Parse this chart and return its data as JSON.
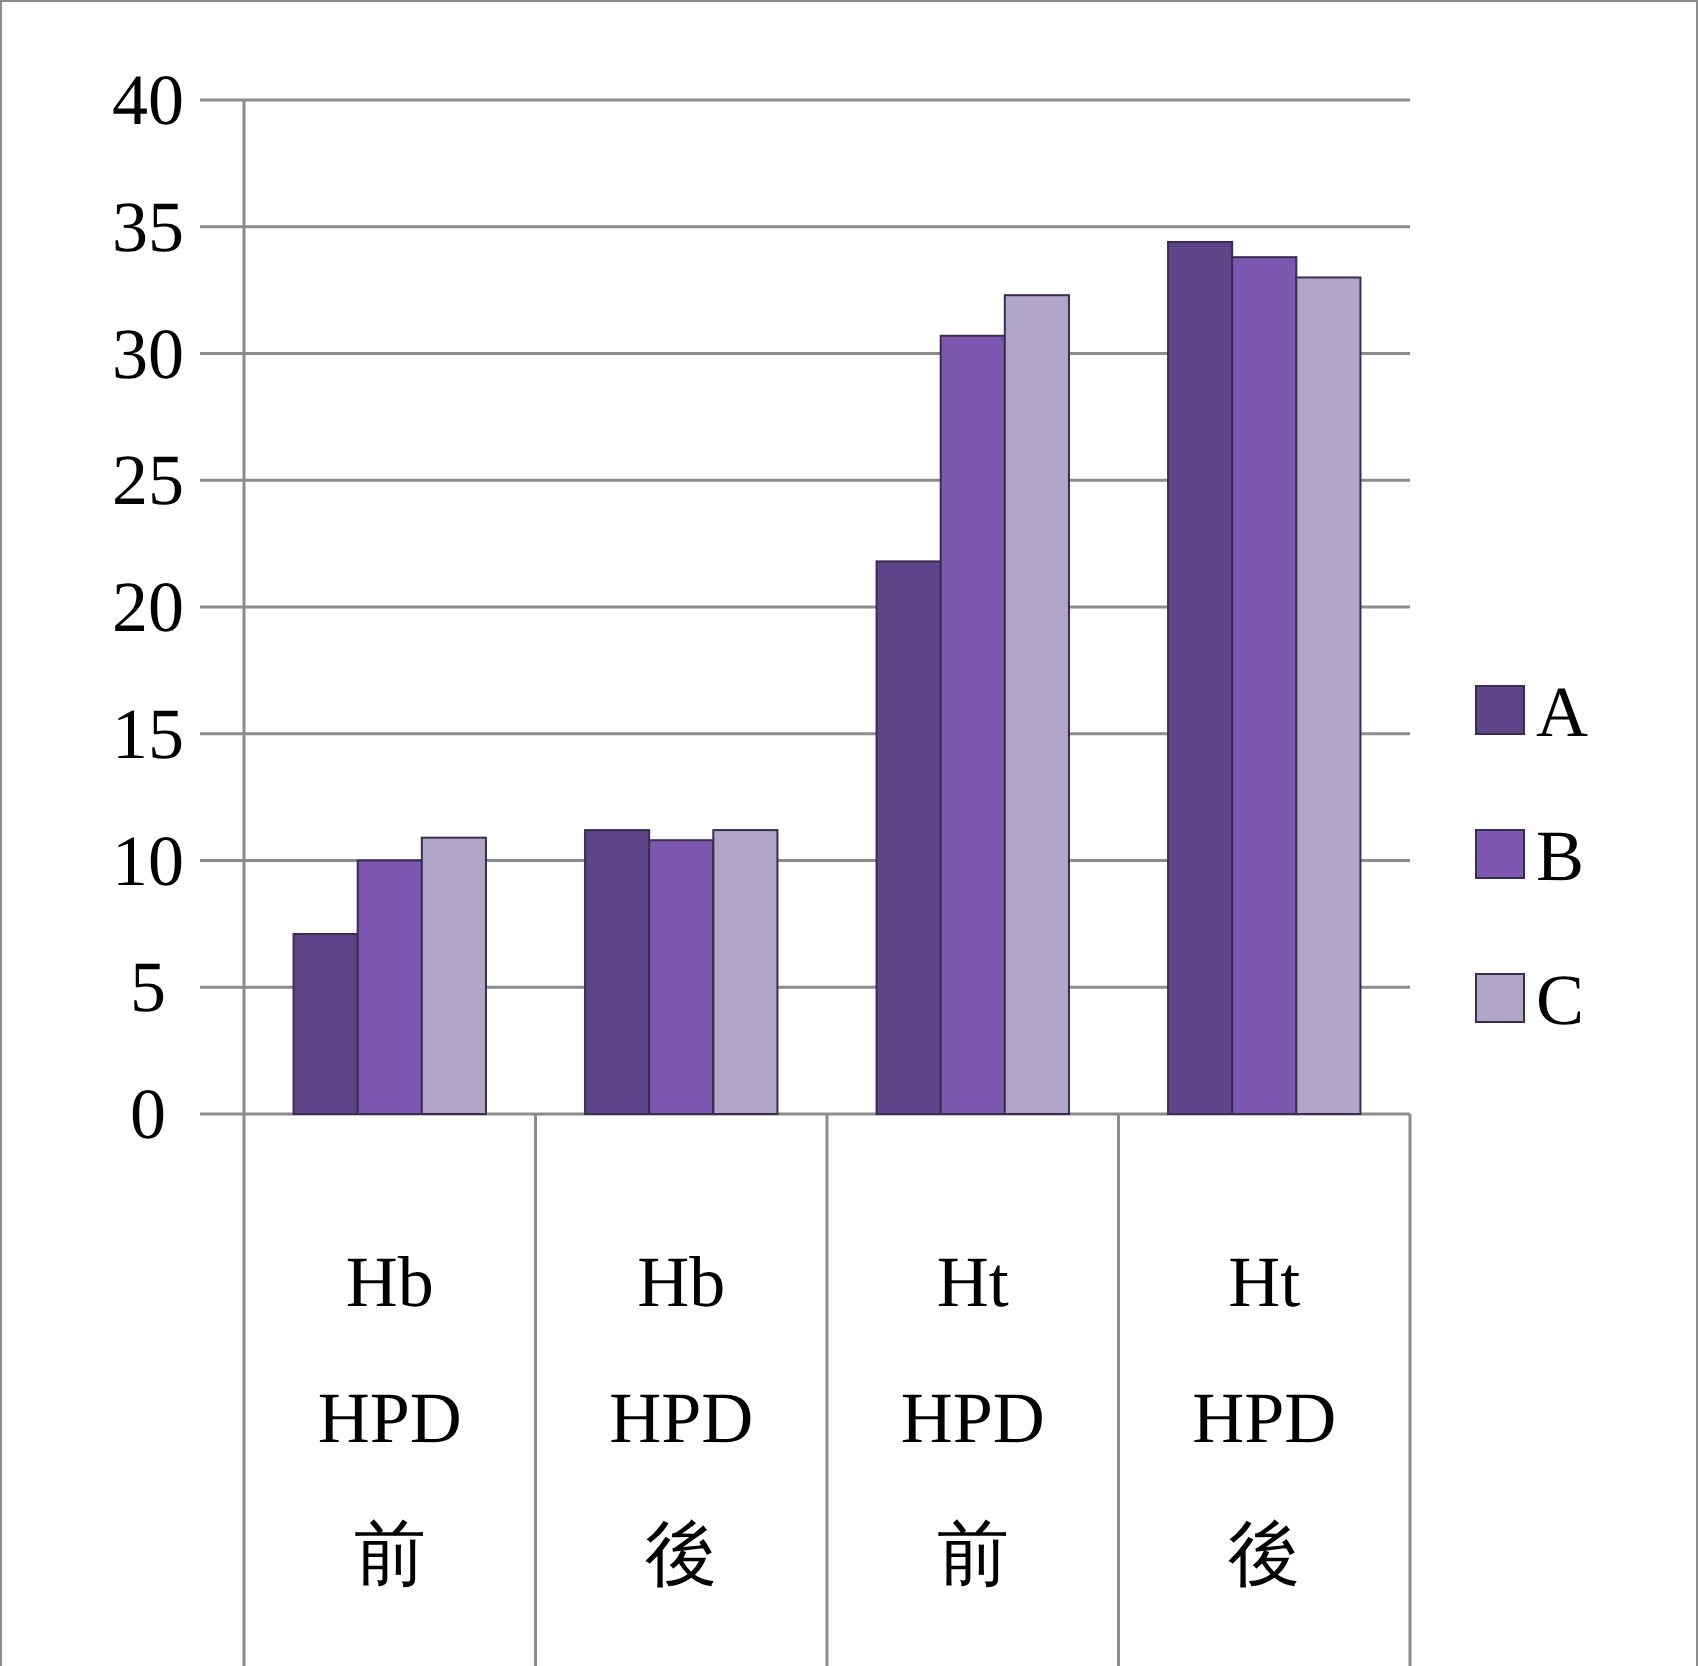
{
  "chart_data": {
    "type": "bar",
    "categories": [
      "Hb HPD前",
      "Hb HPD後",
      "Ht HPD前",
      "Ht HPD後"
    ],
    "series": [
      {
        "name": "A",
        "color": "#5e4488",
        "values": [
          7.1,
          11.2,
          21.8,
          34.4
        ]
      },
      {
        "name": "B",
        "color": "#7d58b0",
        "values": [
          10.0,
          10.8,
          30.7,
          33.8
        ]
      },
      {
        "name": "C",
        "color": "#b2a6c8",
        "values": [
          10.9,
          11.2,
          32.3,
          33.0
        ]
      }
    ],
    "ylim": [
      0,
      40
    ],
    "yticks": [
      0,
      5,
      10,
      15,
      20,
      25,
      30,
      35,
      40
    ],
    "grid": "y",
    "legend": "right"
  }
}
